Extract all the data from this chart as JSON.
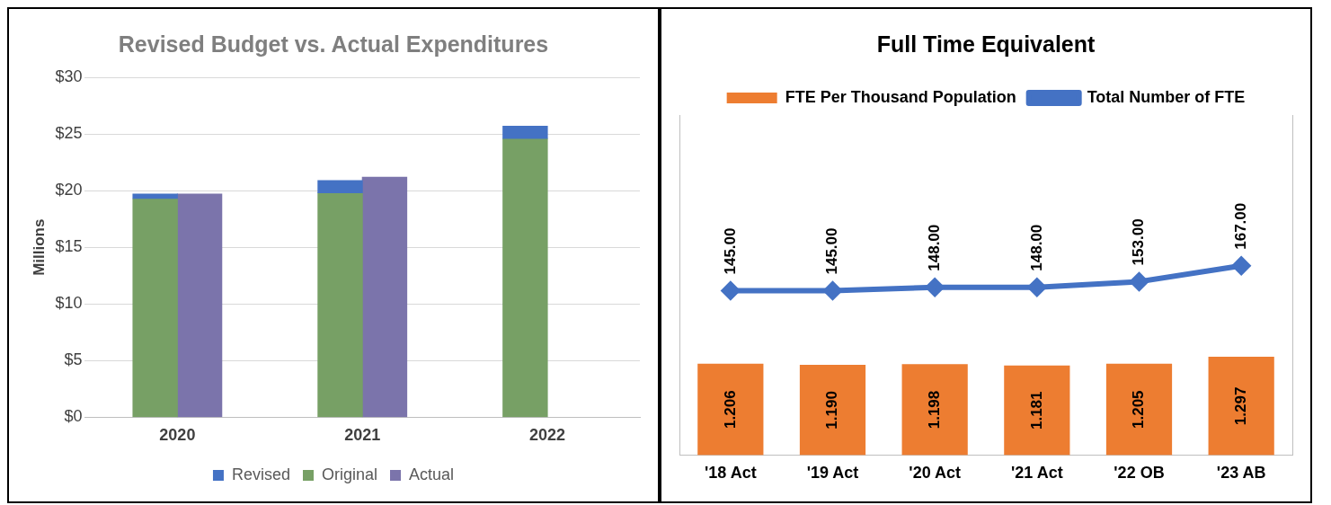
{
  "chart_data": [
    {
      "type": "bar",
      "title": "Revised Budget vs. Actual Expenditures",
      "ylabel": "Millions",
      "categories": [
        "2020",
        "2021",
        "2022"
      ],
      "series": [
        {
          "name": "Revised",
          "color": "#4472c4",
          "base": [
            19.3,
            19.8,
            24.6
          ],
          "values": [
            0.4,
            1.1,
            1.1
          ]
        },
        {
          "name": "Original",
          "color": "#77a065",
          "values": [
            19.3,
            19.8,
            24.6
          ]
        },
        {
          "name": "Actual",
          "color": "#7b74ab",
          "values": [
            19.7,
            21.2,
            null
          ]
        }
      ],
      "ylim": [
        0,
        30
      ],
      "yticks": [
        {
          "value": 0,
          "label": "$0"
        },
        {
          "value": 5,
          "label": "$5"
        },
        {
          "value": 10,
          "label": "$10"
        },
        {
          "value": 15,
          "label": "$15"
        },
        {
          "value": 20,
          "label": "$20"
        },
        {
          "value": 25,
          "label": "$25"
        },
        {
          "value": 30,
          "label": "$30"
        }
      ],
      "grid": "y",
      "legend": "bottom"
    },
    {
      "type": "bar",
      "title": "Full Time Equivalent",
      "categories": [
        "'18 Act",
        "'19 Act",
        "'20 Act",
        "'21 Act",
        "'22 OB",
        "'23 AB"
      ],
      "series": [
        {
          "name": "FTE Per Thousand Population",
          "color": "#ed7d31",
          "values": [
            1.206,
            1.19,
            1.198,
            1.181,
            1.205,
            1.297
          ],
          "value_labels": [
            "1.206",
            "1.190",
            "1.198",
            "1.181",
            "1.205",
            "1.297"
          ]
        },
        {
          "name": "Total Number of FTE",
          "type": "line",
          "axis": "y2",
          "color": "#4472c4",
          "values": [
            145,
            145,
            148,
            148,
            153,
            167
          ],
          "value_labels": [
            "145.00",
            "145.00",
            "148.00",
            "148.00",
            "153.00",
            "167.00"
          ]
        }
      ],
      "ylim": [
        0,
        4.5
      ],
      "y2lim": [
        0,
        300
      ],
      "tick_labels": "x",
      "marker": "diamond",
      "grid": false,
      "legend": "top"
    }
  ]
}
